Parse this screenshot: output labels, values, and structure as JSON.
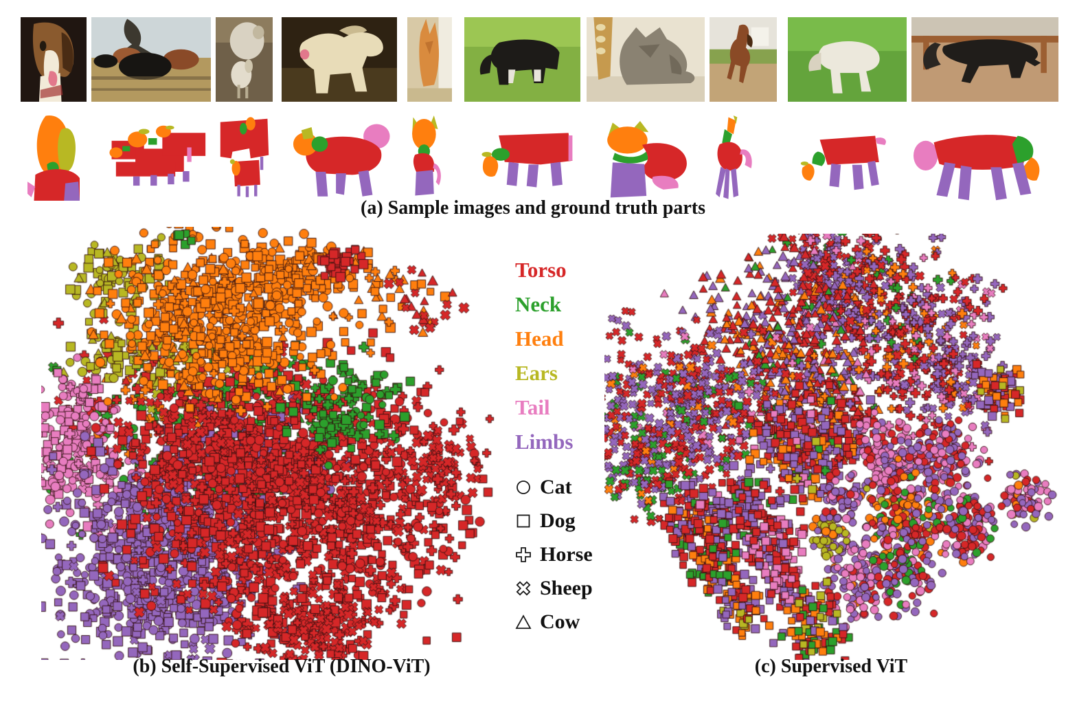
{
  "figure": {
    "caption_a": "(a) Sample images and ground truth parts",
    "caption_b": "(b) Self-Supervised ViT (DINO-ViT)",
    "caption_c": "(c) Supervised ViT"
  },
  "colors": {
    "torso": "#d62728",
    "neck": "#2ca02c",
    "head": "#ff7f0e",
    "ears": "#b8b823",
    "tail": "#e87dc0",
    "limbs": "#9467bd"
  },
  "legend": {
    "parts": [
      {
        "key": "torso",
        "label": "Torso"
      },
      {
        "key": "neck",
        "label": "Neck"
      },
      {
        "key": "head",
        "label": "Head"
      },
      {
        "key": "ears",
        "label": "Ears"
      },
      {
        "key": "tail",
        "label": "Tail"
      },
      {
        "key": "limbs",
        "label": "Limbs"
      }
    ],
    "species": [
      {
        "marker": "circle",
        "label": "Cat"
      },
      {
        "marker": "square",
        "label": "Dog"
      },
      {
        "marker": "plus",
        "label": "Horse"
      },
      {
        "marker": "x",
        "label": "Sheep"
      },
      {
        "marker": "triangle",
        "label": "Cow"
      }
    ]
  },
  "photos": [
    {
      "label": "beagle dog"
    },
    {
      "label": "cattle herd"
    },
    {
      "label": "sheep and lamb"
    },
    {
      "label": "white dog"
    },
    {
      "label": "tabby kitten"
    },
    {
      "label": "grazing cow"
    },
    {
      "label": "tabby cat with guitar"
    },
    {
      "label": "cantering horse"
    },
    {
      "label": "white lamb grazing"
    },
    {
      "label": "black horse"
    }
  ],
  "masks": [
    {
      "label": "dog head parts mask"
    },
    {
      "label": "cattle herd parts mask"
    },
    {
      "label": "sheep parts mask"
    },
    {
      "label": "white dog parts mask"
    },
    {
      "label": "kitten parts mask"
    },
    {
      "label": "cow parts mask"
    },
    {
      "label": "cat parts mask"
    },
    {
      "label": "horse parts mask"
    },
    {
      "label": "lamb parts mask"
    },
    {
      "label": "black horse parts mask"
    }
  ],
  "chart_data": [
    {
      "id": "dino",
      "type": "scatter",
      "title": "(b) Self-Supervised ViT (DINO-ViT)",
      "description": "t-SNE of part embeddings; points cluster by body part (color). Marker shape encodes species.",
      "axes_visible": false,
      "legend_position": "right-of-chart",
      "seed": 42,
      "marker_size": 10,
      "marker_size_jitter": 4,
      "clusters": [
        {
          "part": "neck",
          "cx": 0.44,
          "cy": 0.4,
          "sx": 0.16,
          "sy": 0.055,
          "n": 170,
          "markers": {
            "square": 0.45,
            "circle": 0.2,
            "plus": 0.15,
            "triangle": 0.1,
            "x": 0.1
          }
        },
        {
          "part": "neck",
          "cx": 0.35,
          "cy": 0.6,
          "sx": 0.12,
          "sy": 0.08,
          "n": 90,
          "markers": {
            "plus": 0.4,
            "square": 0.3,
            "circle": 0.3
          }
        },
        {
          "part": "head",
          "cx": 0.3,
          "cy": 0.47,
          "sx": 0.1,
          "sy": 0.08,
          "n": 60,
          "markers": {
            "plus": 0.5,
            "triangle": 0.3,
            "square": 0.2
          }
        },
        {
          "part": "head",
          "cx": 0.75,
          "cy": 0.15,
          "sx": 0.06,
          "sy": 0.06,
          "n": 40,
          "markers": {
            "triangle": 0.4,
            "square": 0.3,
            "plus": 0.3
          }
        },
        {
          "part": "torso",
          "cx": 0.2,
          "cy": 0.42,
          "sx": 0.1,
          "sy": 0.09,
          "n": 70,
          "markers": {
            "x": 0.5,
            "plus": 0.3,
            "triangle": 0.2
          }
        },
        {
          "part": "ears",
          "cx": 0.17,
          "cy": 0.12,
          "sx": 0.05,
          "sy": 0.04,
          "n": 90,
          "markers": {
            "square": 0.5,
            "circle": 0.3,
            "triangle": 0.2
          }
        },
        {
          "part": "ears",
          "cx": 0.18,
          "cy": 0.29,
          "sx": 0.055,
          "sy": 0.035,
          "n": 70,
          "markers": {
            "square": 0.6,
            "circle": 0.2,
            "triangle": 0.2
          }
        },
        {
          "part": "ears",
          "cx": 0.33,
          "cy": 0.33,
          "sx": 0.07,
          "sy": 0.05,
          "n": 55,
          "markers": {
            "square": 0.4,
            "plus": 0.2,
            "triangle": 0.2,
            "x": 0.2
          }
        },
        {
          "part": "tail",
          "cx": 0.075,
          "cy": 0.52,
          "sx": 0.045,
          "sy": 0.085,
          "n": 210,
          "markers": {
            "circle": 0.5,
            "square": 0.35,
            "plus": 0.1,
            "x": 0.05
          }
        },
        {
          "part": "tail",
          "cx": 0.24,
          "cy": 0.62,
          "sx": 0.05,
          "sy": 0.05,
          "n": 40,
          "markers": {
            "circle": 0.5,
            "square": 0.3,
            "x": 0.2
          }
        },
        {
          "part": "limbs",
          "cx": 0.27,
          "cy": 0.77,
          "sx": 0.115,
          "sy": 0.115,
          "n": 780,
          "markers": {
            "square": 0.5,
            "circle": 0.4,
            "plus": 0.05,
            "x": 0.05
          }
        },
        {
          "part": "limbs",
          "cx": 0.46,
          "cy": 0.54,
          "sx": 0.09,
          "sy": 0.06,
          "n": 170,
          "markers": {
            "square": 0.6,
            "circle": 0.4
          }
        },
        {
          "part": "torso",
          "cx": 0.36,
          "cy": 0.52,
          "sx": 0.09,
          "sy": 0.07,
          "n": 230,
          "markers": {
            "square": 0.5,
            "circle": 0.2,
            "x": 0.3
          }
        },
        {
          "part": "torso",
          "cx": 0.57,
          "cy": 0.63,
          "sx": 0.17,
          "sy": 0.14,
          "n": 1350,
          "markers": {
            "square": 0.4,
            "circle": 0.2,
            "plus": 0.2,
            "x": 0.2
          }
        },
        {
          "part": "torso",
          "cx": 0.88,
          "cy": 0.54,
          "sx": 0.03,
          "sy": 0.035,
          "n": 50,
          "markers": {
            "x": 0.7,
            "plus": 0.3
          }
        },
        {
          "part": "torso",
          "cx": 0.85,
          "cy": 0.19,
          "sx": 0.04,
          "sy": 0.04,
          "n": 22,
          "markers": {
            "triangle": 0.5,
            "x": 0.5
          }
        },
        {
          "part": "torso",
          "cx": 0.6,
          "cy": 0.93,
          "sx": 0.07,
          "sy": 0.04,
          "n": 170,
          "markers": {
            "x": 0.6,
            "square": 0.3,
            "plus": 0.1
          }
        },
        {
          "part": "neck",
          "cx": 0.66,
          "cy": 0.44,
          "sx": 0.055,
          "sy": 0.05,
          "n": 100,
          "markers": {
            "square": 0.5,
            "plus": 0.3,
            "circle": 0.2
          }
        },
        {
          "part": "head",
          "cx": 0.4,
          "cy": 0.21,
          "sx": 0.12,
          "sy": 0.085,
          "n": 620,
          "markers": {
            "square": 0.5,
            "circle": 0.35,
            "triangle": 0.08,
            "plus": 0.07
          }
        },
        {
          "part": "head",
          "cx": 0.57,
          "cy": 0.1,
          "sx": 0.05,
          "sy": 0.035,
          "n": 85,
          "markers": {
            "square": 0.6,
            "circle": 0.3,
            "triangle": 0.1
          }
        },
        {
          "part": "head",
          "cx": 0.31,
          "cy": 0.015,
          "sx": 0.025,
          "sy": 0.015,
          "n": 8,
          "markers": {
            "circle": 0.6,
            "square": 0.4
          }
        },
        {
          "part": "torso",
          "cx": 0.66,
          "cy": 0.08,
          "sx": 0.025,
          "sy": 0.02,
          "n": 30,
          "markers": {
            "square": 1
          }
        },
        {
          "part": "neck",
          "cx": 0.315,
          "cy": 0.02,
          "sx": 0.012,
          "sy": 0.01,
          "n": 5,
          "markers": {
            "square": 1
          }
        }
      ]
    },
    {
      "id": "supervised",
      "type": "scatter",
      "title": "(c) Supervised ViT",
      "description": "t-SNE of part embeddings; points cluster by species/image (marker shape) with mixed part colors.",
      "axes_visible": false,
      "seed": 7,
      "marker_size": 9.5,
      "marker_size_jitter": 3,
      "clusters": [
        {
          "colors": {
            "limbs": 0.5,
            "torso": 0.4,
            "neck": 0.05,
            "tail": 0.05
          },
          "cx": 0.5,
          "cy": 0.11,
          "sx": 0.055,
          "sy": 0.08,
          "n": 240,
          "markers": {
            "x": 0.8,
            "plus": 0.2
          }
        },
        {
          "colors": {
            "torso": 0.4,
            "limbs": 0.25,
            "tail": 0.12,
            "head": 0.15,
            "neck": 0.08
          },
          "cx": 0.64,
          "cy": 0.23,
          "sx": 0.07,
          "sy": 0.11,
          "n": 300,
          "markers": {
            "plus": 0.9,
            "x": 0.1
          }
        },
        {
          "colors": {
            "limbs": 0.4,
            "torso": 0.3,
            "tail": 0.2,
            "head": 0.1
          },
          "cx": 0.77,
          "cy": 0.3,
          "sx": 0.05,
          "sy": 0.09,
          "n": 190,
          "markers": {
            "plus": 0.6,
            "x": 0.4
          }
        },
        {
          "colors": {
            "torso": 0.45,
            "limbs": 0.3,
            "head": 0.15,
            "tail": 0.05,
            "neck": 0.05
          },
          "cx": 0.37,
          "cy": 0.24,
          "sx": 0.09,
          "sy": 0.1,
          "n": 340,
          "markers": {
            "triangle": 1
          }
        },
        {
          "colors": {
            "head": 0.3,
            "torso": 0.3,
            "limbs": 0.25,
            "tail": 0.1,
            "neck": 0.05
          },
          "cx": 0.47,
          "cy": 0.4,
          "sx": 0.06,
          "sy": 0.08,
          "n": 240,
          "markers": {
            "triangle": 0.85,
            "plus": 0.15
          }
        },
        {
          "colors": {
            "limbs": 0.45,
            "torso": 0.35,
            "neck": 0.1,
            "head": 0.05,
            "tail": 0.05
          },
          "cx": 0.17,
          "cy": 0.41,
          "sx": 0.115,
          "sy": 0.09,
          "n": 520,
          "markers": {
            "x": 1
          }
        },
        {
          "colors": {
            "neck": 0.3,
            "torso": 0.3,
            "limbs": 0.3,
            "head": 0.1
          },
          "cx": 0.12,
          "cy": 0.55,
          "sx": 0.05,
          "sy": 0.05,
          "n": 120,
          "markers": {
            "x": 1
          }
        },
        {
          "colors": {
            "limbs": 0.35,
            "torso": 0.35,
            "head": 0.15,
            "tail": 0.05,
            "ears": 0.05,
            "neck": 0.05
          },
          "cx": 0.45,
          "cy": 0.5,
          "sx": 0.065,
          "sy": 0.055,
          "n": 270,
          "markers": {
            "square": 0.9,
            "plus": 0.1
          }
        },
        {
          "colors": {
            "head": 0.35,
            "limbs": 0.35,
            "torso": 0.25,
            "ears": 0.05
          },
          "cx": 0.875,
          "cy": 0.37,
          "sx": 0.025,
          "sy": 0.03,
          "n": 70,
          "markers": {
            "square": 1
          }
        },
        {
          "colors": {
            "tail": 0.5,
            "limbs": 0.3,
            "torso": 0.2
          },
          "cx": 0.62,
          "cy": 0.53,
          "sx": 0.035,
          "sy": 0.045,
          "n": 140,
          "markers": {
            "circle": 1
          }
        },
        {
          "colors": {
            "limbs": 0.4,
            "tail": 0.3,
            "torso": 0.3
          },
          "cx": 0.745,
          "cy": 0.52,
          "sx": 0.035,
          "sy": 0.04,
          "n": 130,
          "markers": {
            "circle": 1
          }
        },
        {
          "colors": {
            "tail": 0.35,
            "limbs": 0.3,
            "torso": 0.2,
            "head": 0.1,
            "ears": 0.05
          },
          "cx": 0.93,
          "cy": 0.62,
          "sx": 0.025,
          "sy": 0.03,
          "n": 80,
          "markers": {
            "circle": 1
          }
        },
        {
          "colors": {
            "head": 0.3,
            "torso": 0.25,
            "limbs": 0.2,
            "neck": 0.1,
            "tail": 0.1,
            "ears": 0.05
          },
          "cx": 0.67,
          "cy": 0.66,
          "sx": 0.045,
          "sy": 0.05,
          "n": 190,
          "markers": {
            "circle": 1
          }
        },
        {
          "colors": {
            "torso": 0.4,
            "limbs": 0.3,
            "tail": 0.2,
            "neck": 0.1
          },
          "cx": 0.8,
          "cy": 0.68,
          "sx": 0.03,
          "sy": 0.04,
          "n": 120,
          "markers": {
            "circle": 1
          }
        },
        {
          "colors": {
            "tail": 0.45,
            "limbs": 0.35,
            "torso": 0.15,
            "head": 0.05
          },
          "cx": 0.56,
          "cy": 0.8,
          "sx": 0.03,
          "sy": 0.05,
          "n": 120,
          "markers": {
            "circle": 1
          }
        },
        {
          "colors": {
            "limbs": 0.4,
            "torso": 0.3,
            "neck": 0.15,
            "tail": 0.15
          },
          "cx": 0.66,
          "cy": 0.8,
          "sx": 0.03,
          "sy": 0.045,
          "n": 110,
          "markers": {
            "circle": 1
          }
        },
        {
          "colors": {
            "ears": 0.6,
            "head": 0.2,
            "limbs": 0.2
          },
          "cx": 0.5,
          "cy": 0.71,
          "sx": 0.02,
          "sy": 0.025,
          "n": 60,
          "markers": {
            "circle": 1
          }
        },
        {
          "colors": {
            "limbs": 0.6,
            "torso": 0.2,
            "tail": 0.2
          },
          "cx": 0.52,
          "cy": 0.63,
          "sx": 0.02,
          "sy": 0.03,
          "n": 50,
          "markers": {
            "circle": 1
          }
        },
        {
          "colors": {
            "torso": 0.5,
            "limbs": 0.3,
            "neck": 0.1,
            "head": 0.1
          },
          "cx": 0.2,
          "cy": 0.67,
          "sx": 0.035,
          "sy": 0.04,
          "n": 110,
          "markers": {
            "square": 1
          }
        },
        {
          "colors": {
            "limbs": 0.5,
            "torso": 0.3,
            "tail": 0.1,
            "neck": 0.1
          },
          "cx": 0.31,
          "cy": 0.65,
          "sx": 0.035,
          "sy": 0.045,
          "n": 120,
          "markers": {
            "square": 1
          }
        },
        {
          "colors": {
            "torso": 0.4,
            "neck": 0.25,
            "head": 0.2,
            "limbs": 0.15
          },
          "cx": 0.24,
          "cy": 0.77,
          "sx": 0.03,
          "sy": 0.035,
          "n": 90,
          "markers": {
            "square": 1
          }
        },
        {
          "colors": {
            "tail": 0.45,
            "torso": 0.3,
            "limbs": 0.25
          },
          "cx": 0.38,
          "cy": 0.73,
          "sx": 0.03,
          "sy": 0.04,
          "n": 90,
          "markers": {
            "square": 1
          }
        },
        {
          "colors": {
            "tail": 0.4,
            "torso": 0.4,
            "limbs": 0.2
          },
          "cx": 0.4,
          "cy": 0.83,
          "sx": 0.022,
          "sy": 0.028,
          "n": 50,
          "markers": {
            "square": 1
          }
        },
        {
          "colors": {
            "limbs": 0.5,
            "head": 0.2,
            "torso": 0.2,
            "ears": 0.1
          },
          "cx": 0.3,
          "cy": 0.88,
          "sx": 0.025,
          "sy": 0.03,
          "n": 60,
          "markers": {
            "square": 1
          }
        },
        {
          "colors": {
            "head": 0.3,
            "ears": 0.2,
            "neck": 0.2,
            "torso": 0.2,
            "limbs": 0.1
          },
          "cx": 0.46,
          "cy": 0.92,
          "sx": 0.035,
          "sy": 0.04,
          "n": 100,
          "markers": {
            "square": 1
          }
        }
      ]
    }
  ]
}
